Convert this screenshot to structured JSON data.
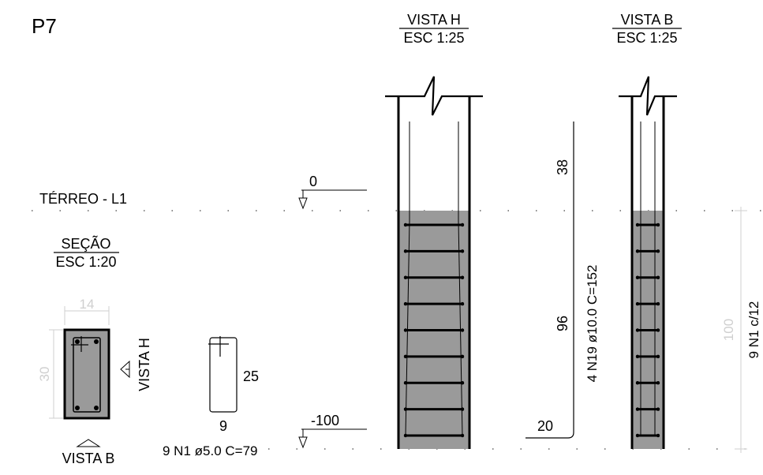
{
  "pillar_id": "P7",
  "views": {
    "vista_h": {
      "title": "VISTA H",
      "scale": "ESC 1:25"
    },
    "vista_b": {
      "title": "VISTA B",
      "scale": "ESC 1:25"
    },
    "section": {
      "title": "SEÇÃO",
      "scale": "ESC 1:20"
    }
  },
  "level": {
    "name": "TÉRREO - L1",
    "top": "0",
    "bottom": "-100"
  },
  "section_dims": {
    "width": "14",
    "height": "30"
  },
  "markers": {
    "vista_h": "VISTA H",
    "vista_b": "VISTA B"
  },
  "stirrup": {
    "height": "25",
    "width": "9",
    "spec": "9 N1 ø5.0 C=79"
  },
  "long_bar": {
    "top": "38",
    "middle": "96",
    "hook": "20",
    "spec": "4 N19 ø10.0 C=152"
  },
  "vista_b_dims": {
    "height": "100",
    "spec": "9 N1 c/12"
  },
  "colors": {
    "concrete_fill": "#9a9a9a",
    "dimension_gray": "#cfcfcf",
    "line": "#000000"
  }
}
